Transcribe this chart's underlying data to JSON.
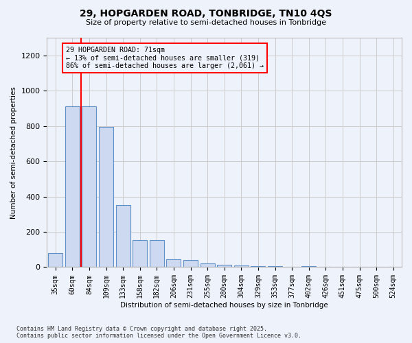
{
  "title": "29, HOPGARDEN ROAD, TONBRIDGE, TN10 4QS",
  "subtitle": "Size of property relative to semi-detached houses in Tonbridge",
  "xlabel": "Distribution of semi-detached houses by size in Tonbridge",
  "ylabel": "Number of semi-detached properties",
  "categories": [
    "35sqm",
    "60sqm",
    "84sqm",
    "109sqm",
    "133sqm",
    "158sqm",
    "182sqm",
    "206sqm",
    "231sqm",
    "255sqm",
    "280sqm",
    "304sqm",
    "329sqm",
    "353sqm",
    "377sqm",
    "402sqm",
    "426sqm",
    "451sqm",
    "475sqm",
    "500sqm",
    "524sqm"
  ],
  "values": [
    80,
    910,
    910,
    795,
    350,
    155,
    155,
    45,
    40,
    20,
    15,
    10,
    7,
    5,
    2,
    5,
    0,
    0,
    0,
    0,
    0
  ],
  "bar_color": "#ccd9f0",
  "bar_edge_color": "#6090c8",
  "red_line_x": 1.5,
  "annotation_line1": "29 HOPGARDEN ROAD: 71sqm",
  "annotation_line2": "← 13% of semi-detached houses are smaller (319)",
  "annotation_line3": "86% of semi-detached houses are larger (2,061) →",
  "ylim_max": 1300,
  "yticks": [
    0,
    200,
    400,
    600,
    800,
    1000,
    1200
  ],
  "grid_color": "#cccccc",
  "background_color": "#eef2fa",
  "footnote1": "Contains HM Land Registry data © Crown copyright and database right 2025.",
  "footnote2": "Contains public sector information licensed under the Open Government Licence v3.0."
}
